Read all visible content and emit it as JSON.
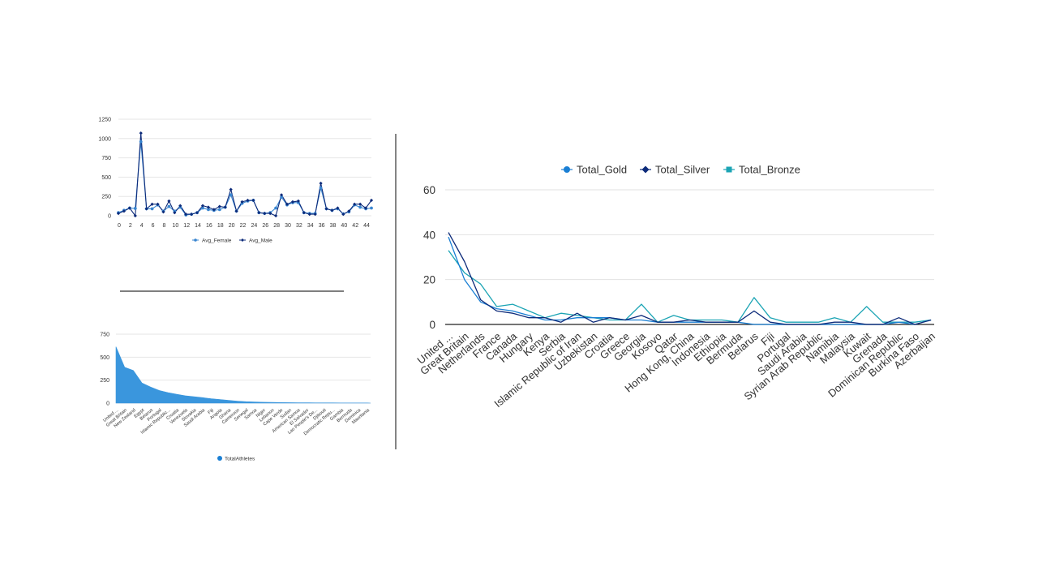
{
  "chart_data": [
    {
      "type": "line",
      "title": "",
      "xlabel": "",
      "ylabel": "",
      "ylim": [
        0,
        1250
      ],
      "yticks": [
        0,
        250,
        500,
        750,
        1000,
        1250
      ],
      "xticks": [
        0,
        2,
        4,
        6,
        8,
        10,
        12,
        14,
        16,
        18,
        20,
        22,
        24,
        26,
        28,
        30,
        32,
        34,
        36,
        38,
        40,
        42,
        44
      ],
      "xlim": [
        0,
        45
      ],
      "grid": true,
      "legend_position": "bottom",
      "x": [
        0,
        1,
        2,
        3,
        4,
        5,
        6,
        7,
        8,
        9,
        10,
        11,
        12,
        13,
        14,
        15,
        16,
        17,
        18,
        19,
        20,
        21,
        22,
        23,
        24,
        25,
        26,
        27,
        28,
        29,
        30,
        31,
        32,
        33,
        34,
        35,
        36,
        37,
        38,
        39,
        40,
        41,
        42,
        43,
        44,
        45
      ],
      "series": [
        {
          "name": "Avg_Female",
          "color": "#3a86d0",
          "values": [
            40,
            70,
            100,
            95,
            960,
            90,
            90,
            140,
            60,
            120,
            60,
            110,
            10,
            20,
            40,
            100,
            80,
            70,
            80,
            110,
            270,
            60,
            160,
            190,
            200,
            40,
            30,
            40,
            100,
            240,
            140,
            170,
            170,
            40,
            30,
            30,
            360,
            90,
            70,
            90,
            25,
            50,
            140,
            110,
            90,
            100
          ]
        },
        {
          "name": "Avg_Male",
          "color": "#0d2b7a",
          "values": [
            30,
            60,
            100,
            0,
            1070,
            90,
            150,
            150,
            50,
            190,
            40,
            130,
            20,
            20,
            40,
            130,
            110,
            80,
            120,
            110,
            340,
            60,
            180,
            200,
            200,
            40,
            30,
            30,
            0,
            270,
            150,
            180,
            190,
            40,
            20,
            20,
            420,
            90,
            70,
            100,
            20,
            60,
            150,
            150,
            100,
            200
          ]
        }
      ]
    },
    {
      "type": "area",
      "title": "",
      "xlabel": "",
      "ylabel": "",
      "ylim": [
        0,
        750
      ],
      "yticks": [
        0,
        250,
        500,
        750
      ],
      "grid": true,
      "legend_position": "bottom",
      "categories": [
        "United ...",
        "Great Britain",
        "New Zealand",
        "Egypt",
        "Belarus",
        "Portugal",
        "Islamic Republic...",
        "Croatia",
        "Venezuela",
        "Slovakia",
        "Saudi Arabia",
        "Fiji",
        "Angola",
        "Ghana",
        "Cameroon",
        "Senegal",
        "Samoa",
        "Niger",
        "Lebanon",
        "Cape Verde",
        "Sudan",
        "American Samoa",
        "El Salvador",
        "Lao People's De...",
        "Djibouti",
        "Democratic Repu...",
        "Gambia",
        "Bermuda",
        "Dominica",
        "Mauritania"
      ],
      "series": [
        {
          "name": "TotalAthletes",
          "color": "#3a96dd",
          "values": [
            613,
            390,
            355,
            220,
            175,
            138,
            115,
            96,
            80,
            70,
            60,
            48,
            40,
            30,
            22,
            16,
            12,
            10,
            8,
            6,
            5,
            4,
            4,
            3,
            3,
            3,
            2,
            2,
            2,
            2
          ]
        }
      ]
    },
    {
      "type": "line",
      "title": "",
      "xlabel": "",
      "ylabel": "",
      "ylim": [
        0,
        60
      ],
      "yticks": [
        0,
        20,
        40,
        60
      ],
      "grid": true,
      "legend_position": "top",
      "categories": [
        "United ...",
        "Great Britain",
        "Netherlands",
        "France",
        "Canada",
        "Hungary",
        "Kenya",
        "Serbia",
        "Islamic Republic of Iran",
        "Uzbekistan",
        "Croatia",
        "Greece",
        "Georgia",
        "Kosovo",
        "Qatar",
        "Hong Kong, China",
        "Indonesia",
        "Ethiopia",
        "Bermuda",
        "Belarus",
        "Fiji",
        "Portugal",
        "Saudi Arabia",
        "Syrian Arab Republic",
        "Namibia",
        "Malaysia",
        "Kuwait",
        "Grenada",
        "Dominican Republic",
        "Burkina Faso",
        "Azerbaijan"
      ],
      "series": [
        {
          "name": "Total_Gold",
          "color": "#1a7fd4",
          "values": [
            39,
            20,
            10,
            7,
            6,
            4,
            2,
            2,
            3,
            3,
            3,
            2,
            2,
            1,
            1,
            1,
            1,
            1,
            1,
            0,
            0,
            0,
            0,
            0,
            0,
            0,
            0,
            0,
            1,
            0,
            2
          ]
        },
        {
          "name": "Total_Silver",
          "color": "#0d2b7a",
          "values": [
            41,
            28,
            11,
            6,
            5,
            3,
            3,
            1,
            5,
            1,
            3,
            2,
            4,
            1,
            1,
            2,
            1,
            1,
            1,
            6,
            1,
            0,
            0,
            0,
            1,
            1,
            0,
            0,
            3,
            0,
            2
          ]
        },
        {
          "name": "Total_Bronze",
          "color": "#1ba4b4",
          "values": [
            33,
            23,
            18,
            8,
            9,
            6,
            3,
            5,
            4,
            3,
            2,
            2,
            9,
            1,
            4,
            2,
            2,
            2,
            1,
            12,
            3,
            1,
            1,
            1,
            3,
            1,
            8,
            1,
            1,
            1,
            2
          ]
        }
      ]
    }
  ]
}
